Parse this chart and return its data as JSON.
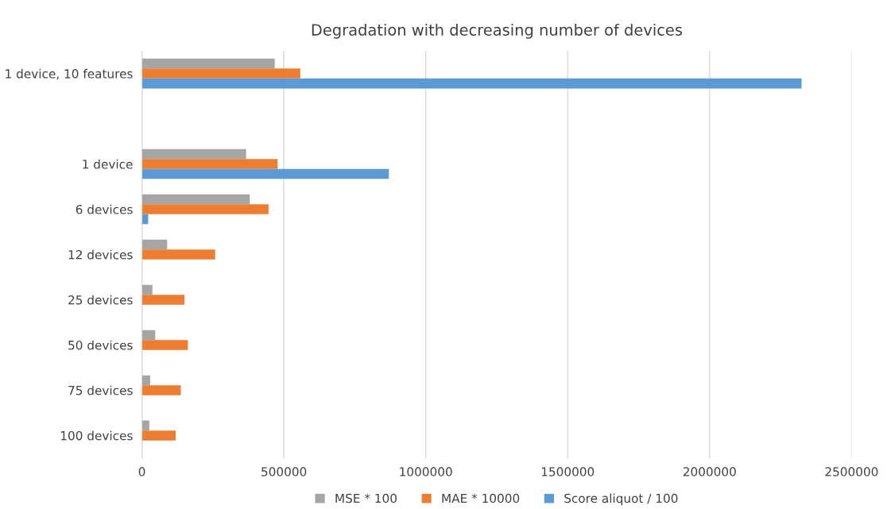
{
  "chart_data": {
    "type": "bar",
    "orientation": "horizontal",
    "title": "Degradation with decreasing number of devices",
    "categories": [
      "1 device, 10 features",
      null,
      "1 device",
      "6 devices",
      "12 devices",
      "25 devices",
      "50 devices",
      "75 devices",
      "100 devices"
    ],
    "series": [
      {
        "name": "MSE * 100",
        "color": "#a5a5a5",
        "values": [
          468000,
          null,
          367000,
          380000,
          89000,
          37000,
          47000,
          29000,
          26000
        ]
      },
      {
        "name": "MAE * 10000",
        "color": "#ed7d31",
        "values": [
          558000,
          null,
          478000,
          446000,
          258000,
          150000,
          162000,
          137000,
          119000
        ]
      },
      {
        "name": "Score aliquot / 100",
        "color": "#5b9bd5",
        "values": [
          2324000,
          null,
          870000,
          22000,
          null,
          null,
          null,
          null,
          null
        ]
      }
    ],
    "xlim": [
      0,
      2500000
    ],
    "xticks": [
      0,
      500000,
      1000000,
      1500000,
      2000000,
      2500000
    ],
    "grid": "x",
    "legend": "bottom"
  }
}
